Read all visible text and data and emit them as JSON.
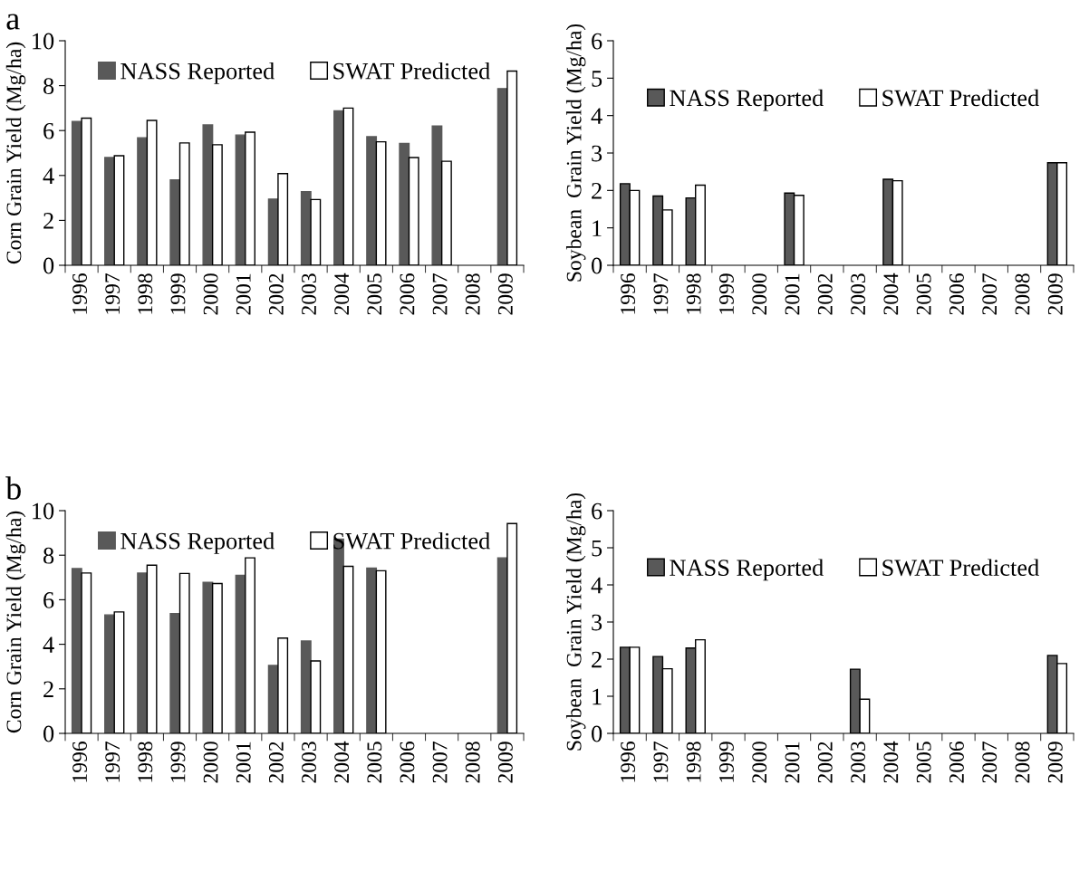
{
  "chart_data": [
    {
      "type": "bar",
      "title": "a",
      "ylabel": "Corn Grain Yield (Mg/ha)",
      "categories": [
        "1996",
        "1997",
        "1998",
        "1999",
        "2000",
        "2001",
        "2002",
        "2003",
        "2004",
        "2005",
        "2006",
        "2007",
        "2008",
        "2009"
      ],
      "series": [
        {
          "name": "NASS Reported",
          "color": "#595959",
          "values": [
            6.4,
            4.8,
            5.68,
            3.8,
            6.25,
            5.8,
            2.95,
            3.28,
            6.88,
            5.73,
            5.43,
            6.2,
            null,
            7.87
          ]
        },
        {
          "name": "SWAT Predicted",
          "color": "#ffffff",
          "values": [
            6.55,
            4.88,
            6.45,
            5.45,
            5.37,
            5.93,
            4.08,
            2.93,
            7.0,
            5.5,
            4.8,
            4.63,
            null,
            8.65
          ]
        }
      ],
      "ylim": [
        0,
        10
      ],
      "yticks": [
        0,
        2,
        4,
        6,
        8,
        10
      ],
      "legend": "top",
      "grid": false
    },
    {
      "type": "bar",
      "ylabel": "Soybean  Grain Yield (Mg/ha)",
      "categories": [
        "1996",
        "1997",
        "1998",
        "1999",
        "2000",
        "2001",
        "2002",
        "2003",
        "2004",
        "2005",
        "2006",
        "2007",
        "2008",
        "2009"
      ],
      "series": [
        {
          "name": "NASS Reported",
          "color": "#595959",
          "values": [
            2.18,
            1.85,
            1.8,
            null,
            null,
            1.93,
            null,
            null,
            2.3,
            null,
            null,
            null,
            null,
            2.74
          ]
        },
        {
          "name": "SWAT Predicted",
          "color": "#ffffff",
          "values": [
            2.0,
            1.48,
            2.14,
            null,
            null,
            1.87,
            null,
            null,
            2.26,
            null,
            null,
            null,
            null,
            2.74
          ]
        }
      ],
      "ylim": [
        0,
        6
      ],
      "yticks": [
        0,
        1,
        2,
        3,
        4,
        5,
        6
      ],
      "legend": "top",
      "grid": false
    },
    {
      "type": "bar",
      "title": "b",
      "ylabel": "Corn Grain Yield (Mg/ha)",
      "categories": [
        "1996",
        "1997",
        "1998",
        "1999",
        "2000",
        "2001",
        "2002",
        "2003",
        "2004",
        "2005",
        "2006",
        "2007",
        "2008",
        "2009"
      ],
      "series": [
        {
          "name": "NASS Reported",
          "color": "#595959",
          "values": [
            7.4,
            5.32,
            7.2,
            5.38,
            6.78,
            7.1,
            3.05,
            4.15,
            8.72,
            7.42,
            null,
            null,
            null,
            7.88
          ]
        },
        {
          "name": "SWAT Predicted",
          "color": "#ffffff",
          "values": [
            7.2,
            5.45,
            7.55,
            7.18,
            6.73,
            7.88,
            4.28,
            3.25,
            7.5,
            7.3,
            null,
            null,
            null,
            9.42
          ]
        }
      ],
      "ylim": [
        0,
        10
      ],
      "yticks": [
        0,
        2,
        4,
        6,
        8,
        10
      ],
      "legend": "top",
      "grid": false
    },
    {
      "type": "bar",
      "ylabel": "Soybean  Grain Yield (Mg/ha)",
      "categories": [
        "1996",
        "1997",
        "1998",
        "1999",
        "2000",
        "2001",
        "2002",
        "2003",
        "2004",
        "2005",
        "2006",
        "2007",
        "2008",
        "2009"
      ],
      "series": [
        {
          "name": "NASS Reported",
          "color": "#595959",
          "values": [
            2.32,
            2.07,
            2.3,
            null,
            null,
            null,
            null,
            1.73,
            null,
            null,
            null,
            null,
            null,
            2.1
          ]
        },
        {
          "name": "SWAT Predicted",
          "color": "#ffffff",
          "values": [
            2.32,
            1.74,
            2.52,
            null,
            null,
            null,
            null,
            0.92,
            null,
            null,
            null,
            null,
            null,
            1.88
          ]
        }
      ],
      "ylim": [
        0,
        6
      ],
      "yticks": [
        0,
        1,
        2,
        3,
        4,
        5,
        6
      ],
      "legend": "top",
      "grid": false
    }
  ]
}
